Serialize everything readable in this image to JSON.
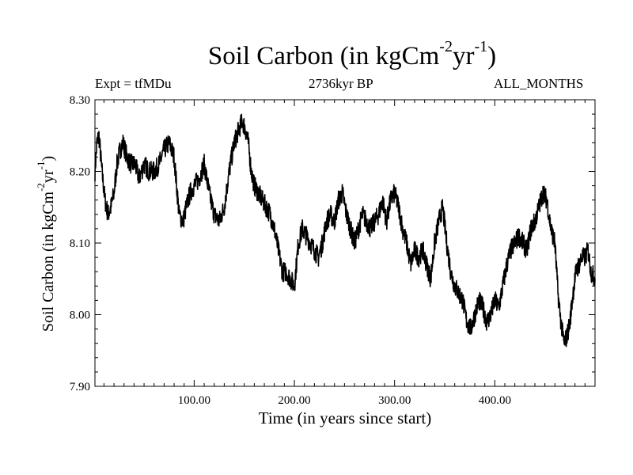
{
  "chart_data": {
    "type": "line",
    "title_main": "Soil Carbon (in kgCm",
    "title_exp1": "-2",
    "title_mid": "yr",
    "title_exp2": "-1",
    "title_end": ")",
    "expt_label": "Expt = tfMDu",
    "period_label": "2736kyr BP",
    "months_label": "ALL_MONTHS",
    "xlabel": "Time (in years since start)",
    "ylabel_main": "Soil Carbon (in kgCm",
    "ylabel_exp1": "-2",
    "ylabel_mid": "yr",
    "ylabel_exp2": "-1",
    "ylabel_end": ")",
    "xlim": [
      1,
      500
    ],
    "ylim": [
      7.9,
      8.3
    ],
    "x_ticks": [
      100,
      200,
      300,
      400
    ],
    "x_tick_labels": [
      "100.00",
      "200.00",
      "300.00",
      "400.00"
    ],
    "y_ticks": [
      7.9,
      8.0,
      8.1,
      8.2,
      8.3
    ],
    "y_tick_labels": [
      "7.90",
      "8.00",
      "8.10",
      "8.20",
      "8.30"
    ],
    "line_color": "#000000",
    "series": [
      {
        "name": "Soil Carbon",
        "x": [
          1,
          3,
          5,
          8,
          11,
          14,
          17,
          20,
          23,
          26,
          29,
          33,
          37,
          41,
          45,
          50,
          55,
          60,
          65,
          70,
          75,
          80,
          85,
          89,
          92,
          96,
          100,
          105,
          110,
          115,
          120,
          125,
          130,
          135,
          140,
          145,
          148,
          151,
          154,
          157,
          160,
          164,
          168,
          172,
          176,
          180,
          184,
          188,
          192,
          196,
          200,
          204,
          208,
          212,
          216,
          220,
          224,
          228,
          232,
          236,
          240,
          244,
          248,
          252,
          256,
          260,
          264,
          268,
          272,
          276,
          280,
          284,
          288,
          292,
          296,
          300,
          304,
          308,
          312,
          316,
          320,
          324,
          328,
          332,
          336,
          340,
          344,
          348,
          352,
          356,
          360,
          364,
          368,
          372,
          376,
          380,
          384,
          388,
          392,
          396,
          400,
          404,
          408,
          412,
          416,
          420,
          424,
          428,
          432,
          436,
          440,
          444,
          448,
          452,
          456,
          460,
          463,
          466,
          469,
          472,
          475,
          478,
          481,
          484,
          487,
          490,
          493,
          496,
          500
        ],
        "values": [
          8.2,
          8.24,
          8.25,
          8.2,
          8.16,
          8.14,
          8.15,
          8.17,
          8.21,
          8.23,
          8.24,
          8.22,
          8.21,
          8.21,
          8.19,
          8.21,
          8.2,
          8.2,
          8.21,
          8.23,
          8.24,
          8.22,
          8.14,
          8.13,
          8.15,
          8.17,
          8.18,
          8.19,
          8.21,
          8.17,
          8.14,
          8.13,
          8.15,
          8.2,
          8.24,
          8.26,
          8.27,
          8.26,
          8.24,
          8.2,
          8.18,
          8.17,
          8.16,
          8.15,
          8.14,
          8.12,
          8.09,
          8.06,
          8.06,
          8.05,
          8.04,
          8.1,
          8.12,
          8.11,
          8.1,
          8.09,
          8.08,
          8.1,
          8.13,
          8.14,
          8.13,
          8.16,
          8.17,
          8.14,
          8.12,
          8.1,
          8.12,
          8.14,
          8.13,
          8.12,
          8.13,
          8.14,
          8.16,
          8.13,
          8.16,
          8.17,
          8.15,
          8.12,
          8.1,
          8.07,
          8.09,
          8.08,
          8.09,
          8.07,
          8.05,
          8.1,
          8.13,
          8.15,
          8.1,
          8.06,
          8.04,
          8.03,
          8.02,
          7.99,
          7.98,
          8.0,
          8.02,
          8.01,
          7.99,
          8.0,
          8.02,
          8.01,
          8.04,
          8.07,
          8.09,
          8.1,
          8.11,
          8.1,
          8.09,
          8.12,
          8.13,
          8.15,
          8.17,
          8.16,
          8.12,
          8.1,
          8.03,
          7.99,
          7.96,
          7.97,
          7.99,
          8.03,
          8.06,
          8.07,
          8.08,
          8.08,
          8.09,
          8.06,
          8.05
        ]
      }
    ]
  }
}
